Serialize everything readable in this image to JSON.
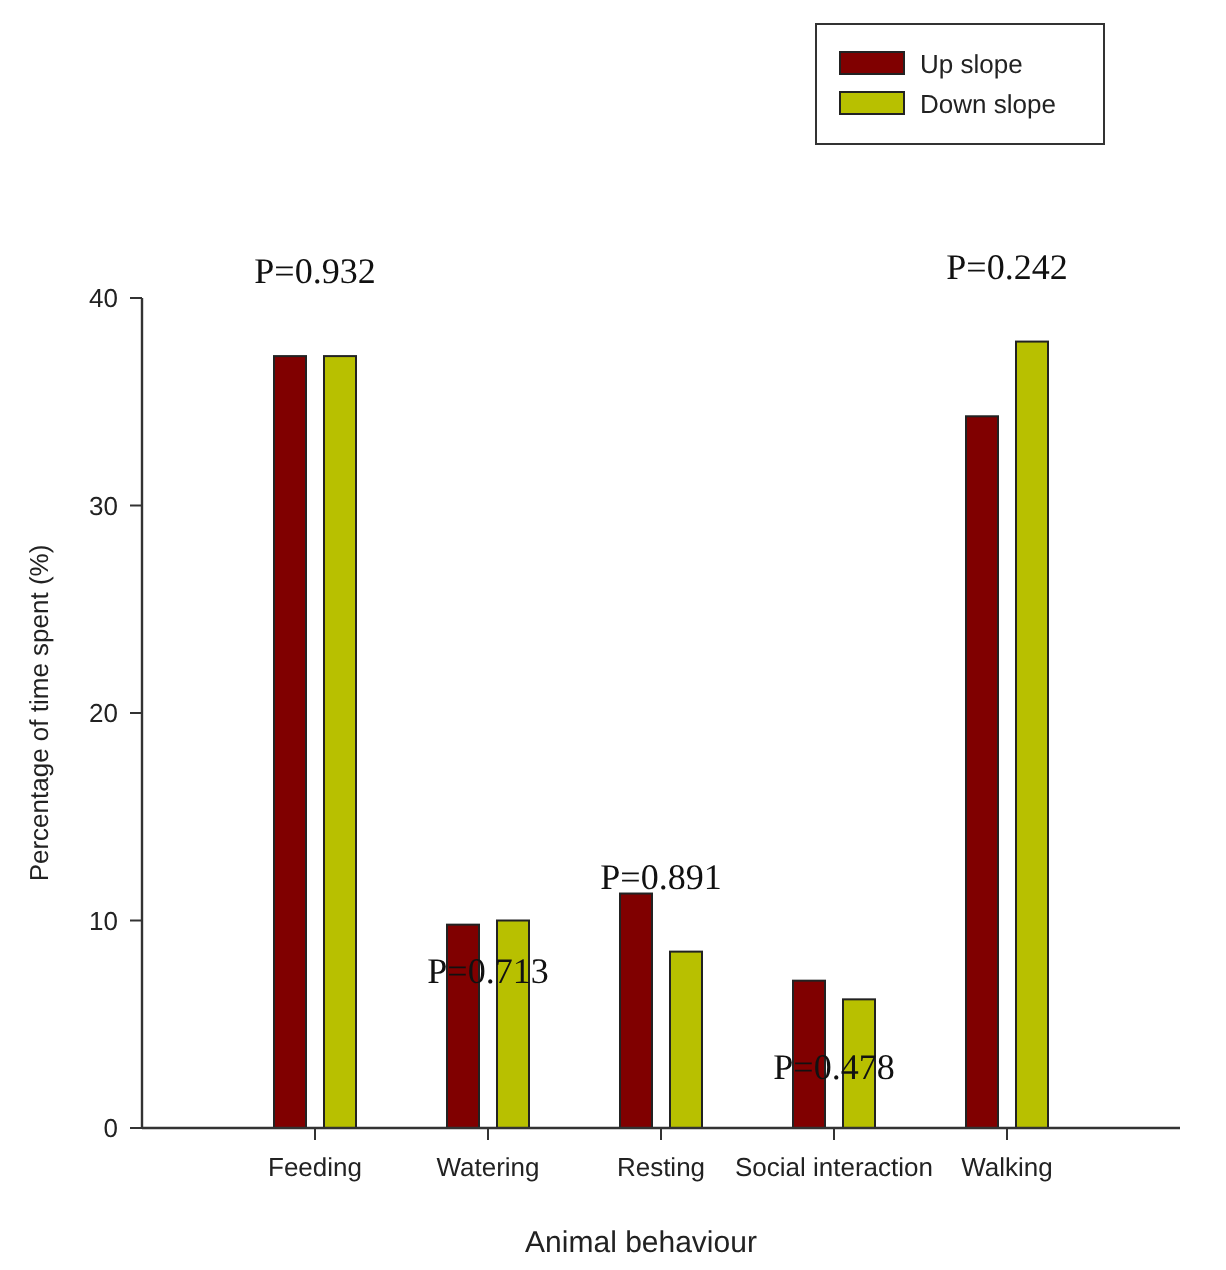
{
  "chart_data": {
    "type": "bar",
    "xlabel": "Animal behaviour",
    "ylabel": "Percentage of time spent (%)",
    "categories": [
      "Feeding",
      "Watering",
      "Resting",
      "Social interaction",
      "Walking"
    ],
    "series": [
      {
        "name": "Up slope",
        "color": "#800000",
        "values": [
          37.2,
          9.8,
          11.3,
          7.1,
          34.3
        ]
      },
      {
        "name": "Down slope",
        "color": "#b8c000",
        "values": [
          37.2,
          10.0,
          8.5,
          6.2,
          37.9
        ]
      }
    ],
    "ylim": [
      0,
      40
    ],
    "yticks": [
      0,
      10,
      20,
      30,
      40
    ],
    "grid": false,
    "legend": "top right",
    "annotations": [
      "P=0.932",
      "P=0.713",
      "P=0.891",
      "P=0.478",
      "P=0.242"
    ]
  }
}
